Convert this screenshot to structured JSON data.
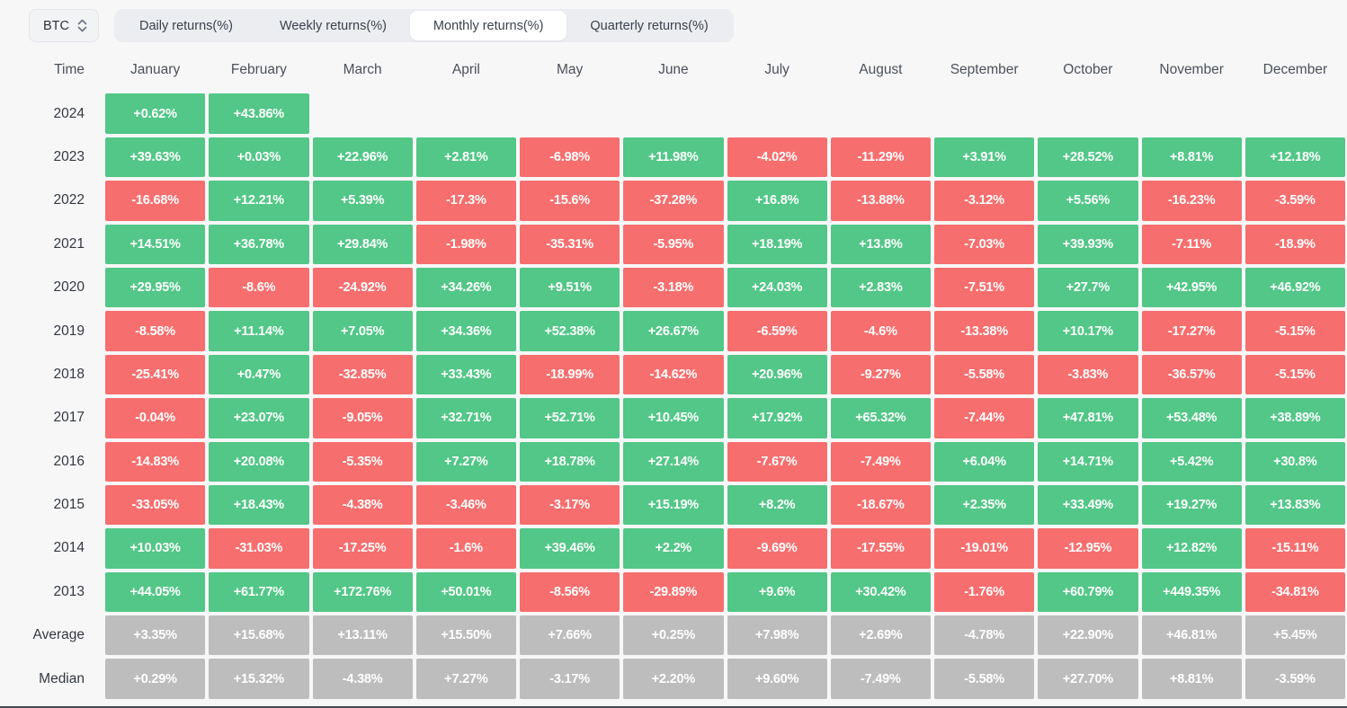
{
  "colors": {
    "positive": "#52c787",
    "negative": "#f76e6e",
    "neutral": "#bdbdbd",
    "tabbar_bg": "#ebedf0",
    "active_tab_bg": "#ffffff"
  },
  "toolbar": {
    "symbol_select": {
      "value": "BTC"
    },
    "tabs": [
      {
        "label": "Daily returns(%)",
        "active": false
      },
      {
        "label": "Weekly returns(%)",
        "active": false
      },
      {
        "label": "Monthly returns(%)",
        "active": true
      },
      {
        "label": "Quarterly returns(%)",
        "active": false
      }
    ]
  },
  "chart_data": {
    "type": "heatmap",
    "title": "BTC Monthly returns(%)",
    "row_header": "Time",
    "columns": [
      "January",
      "February",
      "March",
      "April",
      "May",
      "June",
      "July",
      "August",
      "September",
      "October",
      "November",
      "December"
    ],
    "rows": [
      {
        "label": "2024",
        "kind": "year",
        "values": [
          "+0.62%",
          "+43.86%",
          null,
          null,
          null,
          null,
          null,
          null,
          null,
          null,
          null,
          null
        ]
      },
      {
        "label": "2023",
        "kind": "year",
        "values": [
          "+39.63%",
          "+0.03%",
          "+22.96%",
          "+2.81%",
          "-6.98%",
          "+11.98%",
          "-4.02%",
          "-11.29%",
          "+3.91%",
          "+28.52%",
          "+8.81%",
          "+12.18%"
        ]
      },
      {
        "label": "2022",
        "kind": "year",
        "values": [
          "-16.68%",
          "+12.21%",
          "+5.39%",
          "-17.3%",
          "-15.6%",
          "-37.28%",
          "+16.8%",
          "-13.88%",
          "-3.12%",
          "+5.56%",
          "-16.23%",
          "-3.59%"
        ]
      },
      {
        "label": "2021",
        "kind": "year",
        "values": [
          "+14.51%",
          "+36.78%",
          "+29.84%",
          "-1.98%",
          "-35.31%",
          "-5.95%",
          "+18.19%",
          "+13.8%",
          "-7.03%",
          "+39.93%",
          "-7.11%",
          "-18.9%"
        ]
      },
      {
        "label": "2020",
        "kind": "year",
        "values": [
          "+29.95%",
          "-8.6%",
          "-24.92%",
          "+34.26%",
          "+9.51%",
          "-3.18%",
          "+24.03%",
          "+2.83%",
          "-7.51%",
          "+27.7%",
          "+42.95%",
          "+46.92%"
        ]
      },
      {
        "label": "2019",
        "kind": "year",
        "values": [
          "-8.58%",
          "+11.14%",
          "+7.05%",
          "+34.36%",
          "+52.38%",
          "+26.67%",
          "-6.59%",
          "-4.6%",
          "-13.38%",
          "+10.17%",
          "-17.27%",
          "-5.15%"
        ]
      },
      {
        "label": "2018",
        "kind": "year",
        "values": [
          "-25.41%",
          "+0.47%",
          "-32.85%",
          "+33.43%",
          "-18.99%",
          "-14.62%",
          "+20.96%",
          "-9.27%",
          "-5.58%",
          "-3.83%",
          "-36.57%",
          "-5.15%"
        ]
      },
      {
        "label": "2017",
        "kind": "year",
        "values": [
          "-0.04%",
          "+23.07%",
          "-9.05%",
          "+32.71%",
          "+52.71%",
          "+10.45%",
          "+17.92%",
          "+65.32%",
          "-7.44%",
          "+47.81%",
          "+53.48%",
          "+38.89%"
        ]
      },
      {
        "label": "2016",
        "kind": "year",
        "values": [
          "-14.83%",
          "+20.08%",
          "-5.35%",
          "+7.27%",
          "+18.78%",
          "+27.14%",
          "-7.67%",
          "-7.49%",
          "+6.04%",
          "+14.71%",
          "+5.42%",
          "+30.8%"
        ]
      },
      {
        "label": "2015",
        "kind": "year",
        "values": [
          "-33.05%",
          "+18.43%",
          "-4.38%",
          "-3.46%",
          "-3.17%",
          "+15.19%",
          "+8.2%",
          "-18.67%",
          "+2.35%",
          "+33.49%",
          "+19.27%",
          "+13.83%"
        ]
      },
      {
        "label": "2014",
        "kind": "year",
        "values": [
          "+10.03%",
          "-31.03%",
          "-17.25%",
          "-1.6%",
          "+39.46%",
          "+2.2%",
          "-9.69%",
          "-17.55%",
          "-19.01%",
          "-12.95%",
          "+12.82%",
          "-15.11%"
        ]
      },
      {
        "label": "2013",
        "kind": "year",
        "values": [
          "+44.05%",
          "+61.77%",
          "+172.76%",
          "+50.01%",
          "-8.56%",
          "-29.89%",
          "+9.6%",
          "+30.42%",
          "-1.76%",
          "+60.79%",
          "+449.35%",
          "-34.81%"
        ]
      },
      {
        "label": "Average",
        "kind": "summary",
        "values": [
          "+3.35%",
          "+15.68%",
          "+13.11%",
          "+15.50%",
          "+7.66%",
          "+0.25%",
          "+7.98%",
          "+2.69%",
          "-4.78%",
          "+22.90%",
          "+46.81%",
          "+5.45%"
        ]
      },
      {
        "label": "Median",
        "kind": "summary",
        "values": [
          "+0.29%",
          "+15.32%",
          "-4.38%",
          "+7.27%",
          "-3.17%",
          "+2.20%",
          "+9.60%",
          "-7.49%",
          "-5.58%",
          "+27.70%",
          "+8.81%",
          "-3.59%"
        ]
      }
    ]
  }
}
